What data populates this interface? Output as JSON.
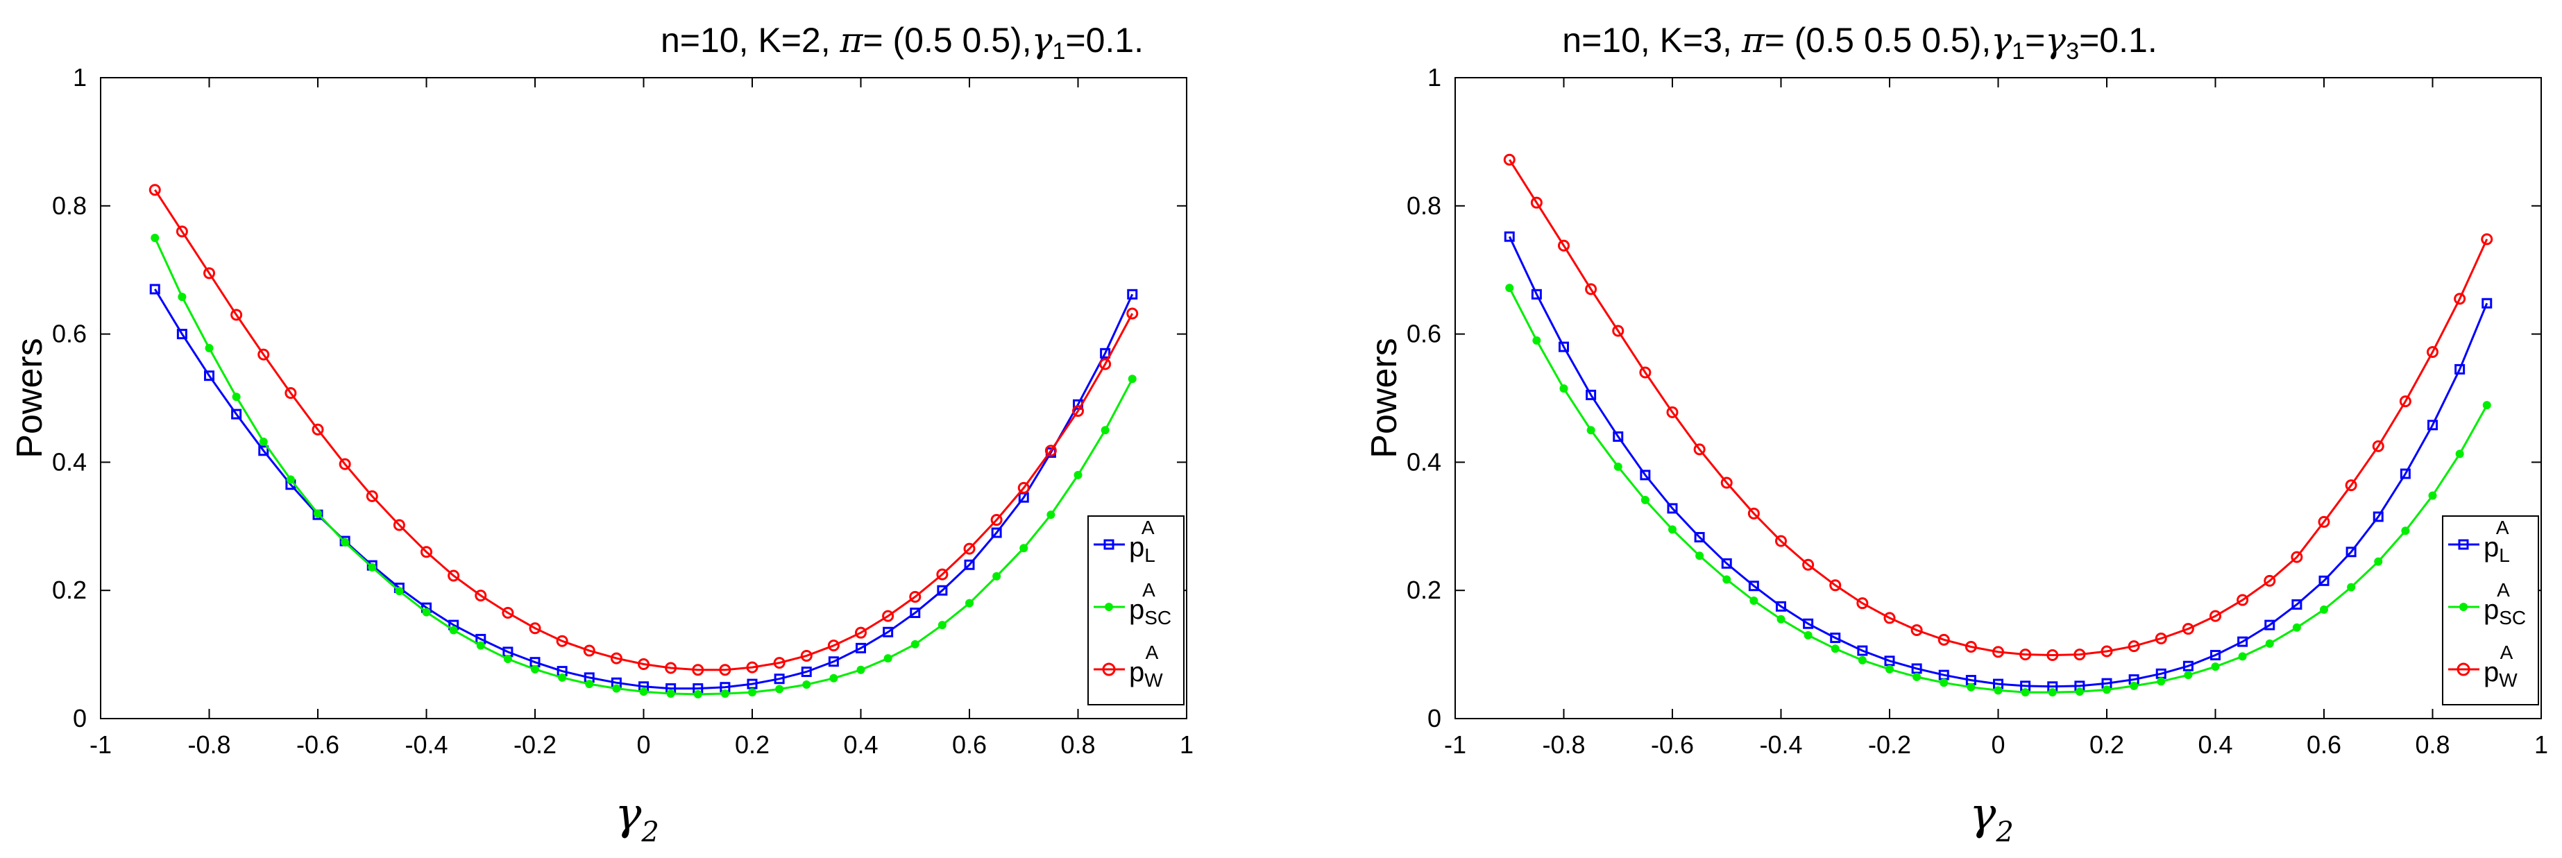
{
  "chart_data": [
    {
      "type": "line",
      "title": "n=10, K=2, π= (0.5 0.5),γ1=0.1.",
      "title_parts": {
        "head": "n=10, K=2, ",
        "pi": "π",
        "mid": "= (0.5 0.5),",
        "gamma": "γ",
        "sub": "1",
        "tail": "=0.1."
      },
      "xlabel": "γ2",
      "xlabel_parts": {
        "main": "γ",
        "sub": "2"
      },
      "ylabel": "Powers",
      "xlim": [
        -1,
        1
      ],
      "ylim": [
        0,
        1
      ],
      "xticks": [
        "-1",
        "-0.8",
        "-0.6",
        "-0.4",
        "-0.2",
        "0",
        "0.2",
        "0.4",
        "0.6",
        "0.8",
        "1"
      ],
      "yticks": [
        "0",
        "0.2",
        "0.4",
        "0.6",
        "0.8",
        "1"
      ],
      "legend_position": "right-middle",
      "x": [
        -0.9,
        -0.85,
        -0.8,
        -0.75,
        -0.7,
        -0.65,
        -0.6,
        -0.55,
        -0.5,
        -0.45,
        -0.4,
        -0.35,
        -0.3,
        -0.25,
        -0.2,
        -0.15,
        -0.1,
        -0.05,
        0,
        0.05,
        0.1,
        0.15,
        0.2,
        0.25,
        0.3,
        0.35,
        0.4,
        0.45,
        0.5,
        0.55,
        0.6,
        0.65,
        0.7,
        0.75,
        0.8,
        0.85,
        0.9
      ],
      "series": [
        {
          "name": "p_L^A",
          "label_main": "p",
          "label_sub": "L",
          "label_sup": "A",
          "color": "#0000ff",
          "marker": "square",
          "values": [
            0.67,
            0.6,
            0.535,
            0.475,
            0.418,
            0.365,
            0.318,
            0.277,
            0.239,
            0.204,
            0.173,
            0.146,
            0.124,
            0.104,
            0.088,
            0.074,
            0.064,
            0.056,
            0.05,
            0.047,
            0.047,
            0.049,
            0.054,
            0.062,
            0.073,
            0.089,
            0.11,
            0.135,
            0.165,
            0.2,
            0.24,
            0.29,
            0.345,
            0.415,
            0.49,
            0.57,
            0.662
          ]
        },
        {
          "name": "p_SC^A",
          "label_main": "p",
          "label_sub": "SC",
          "label_sup": "A",
          "color": "#00ee00",
          "marker": "dot",
          "values": [
            0.75,
            0.658,
            0.578,
            0.502,
            0.432,
            0.373,
            0.32,
            0.275,
            0.236,
            0.199,
            0.166,
            0.138,
            0.114,
            0.093,
            0.077,
            0.064,
            0.054,
            0.047,
            0.042,
            0.039,
            0.038,
            0.039,
            0.041,
            0.046,
            0.053,
            0.063,
            0.076,
            0.094,
            0.116,
            0.146,
            0.18,
            0.222,
            0.266,
            0.318,
            0.38,
            0.45,
            0.53
          ]
        },
        {
          "name": "p_W^A",
          "label_main": "p",
          "label_sub": "W",
          "label_sup": "A",
          "color": "#ff0000",
          "marker": "circle",
          "values": [
            0.825,
            0.76,
            0.695,
            0.63,
            0.568,
            0.508,
            0.451,
            0.397,
            0.347,
            0.302,
            0.26,
            0.223,
            0.192,
            0.165,
            0.141,
            0.121,
            0.106,
            0.094,
            0.085,
            0.079,
            0.076,
            0.076,
            0.08,
            0.087,
            0.098,
            0.114,
            0.134,
            0.16,
            0.19,
            0.225,
            0.265,
            0.31,
            0.36,
            0.418,
            0.48,
            0.553,
            0.632
          ]
        }
      ]
    },
    {
      "type": "line",
      "title": "n=10, K=3, π= (0.5 0.5 0.5),γ1=γ3=0.1.",
      "title_parts": {
        "head": "n=10, K=3, ",
        "pi": "π",
        "mid": "= (0.5 0.5 0.5),",
        "gamma": "γ",
        "sub": "1",
        "eq": "=",
        "gamma2": "γ",
        "sub2": "3",
        "tail": "=0.1."
      },
      "xlabel": "γ2",
      "xlabel_parts": {
        "main": "γ",
        "sub": "2"
      },
      "ylabel": "Powers",
      "xlim": [
        -1,
        1
      ],
      "ylim": [
        0,
        1
      ],
      "xticks": [
        "-1",
        "-0.8",
        "-0.6",
        "-0.4",
        "-0.2",
        "0",
        "0.2",
        "0.4",
        "0.6",
        "0.8",
        "1"
      ],
      "yticks": [
        "0",
        "0.2",
        "0.4",
        "0.6",
        "0.8",
        "1"
      ],
      "legend_position": "right-middle",
      "x": [
        -0.9,
        -0.85,
        -0.8,
        -0.75,
        -0.7,
        -0.65,
        -0.6,
        -0.55,
        -0.5,
        -0.45,
        -0.4,
        -0.35,
        -0.3,
        -0.25,
        -0.2,
        -0.15,
        -0.1,
        -0.05,
        0,
        0.05,
        0.1,
        0.15,
        0.2,
        0.25,
        0.3,
        0.35,
        0.4,
        0.45,
        0.5,
        0.55,
        0.6,
        0.65,
        0.7,
        0.75,
        0.8,
        0.85,
        0.9
      ],
      "series": [
        {
          "name": "p_L^A",
          "label_main": "p",
          "label_sub": "L",
          "label_sup": "A",
          "color": "#0000ff",
          "marker": "square",
          "values": [
            0.752,
            0.662,
            0.58,
            0.505,
            0.44,
            0.38,
            0.328,
            0.283,
            0.242,
            0.207,
            0.175,
            0.148,
            0.126,
            0.106,
            0.09,
            0.078,
            0.068,
            0.06,
            0.054,
            0.051,
            0.05,
            0.051,
            0.055,
            0.061,
            0.07,
            0.082,
            0.099,
            0.12,
            0.146,
            0.178,
            0.215,
            0.26,
            0.315,
            0.382,
            0.458,
            0.545,
            0.648
          ]
        },
        {
          "name": "p_SC^A",
          "label_main": "p",
          "label_sub": "SC",
          "label_sup": "A",
          "color": "#00ee00",
          "marker": "dot",
          "values": [
            0.672,
            0.59,
            0.515,
            0.45,
            0.393,
            0.341,
            0.295,
            0.254,
            0.217,
            0.184,
            0.155,
            0.13,
            0.109,
            0.091,
            0.077,
            0.065,
            0.056,
            0.049,
            0.044,
            0.041,
            0.041,
            0.042,
            0.045,
            0.051,
            0.058,
            0.068,
            0.081,
            0.097,
            0.117,
            0.142,
            0.17,
            0.205,
            0.245,
            0.293,
            0.348,
            0.413,
            0.489
          ]
        },
        {
          "name": "p_W^A",
          "label_main": "p",
          "label_sub": "W",
          "label_sup": "A",
          "color": "#ff0000",
          "marker": "circle",
          "values": [
            0.872,
            0.805,
            0.738,
            0.67,
            0.605,
            0.54,
            0.478,
            0.42,
            0.368,
            0.32,
            0.277,
            0.24,
            0.208,
            0.18,
            0.157,
            0.138,
            0.123,
            0.112,
            0.104,
            0.1,
            0.099,
            0.1,
            0.105,
            0.113,
            0.125,
            0.14,
            0.16,
            0.185,
            0.215,
            0.252,
            0.307,
            0.364,
            0.425,
            0.495,
            0.572,
            0.655,
            0.748
          ]
        }
      ]
    }
  ]
}
